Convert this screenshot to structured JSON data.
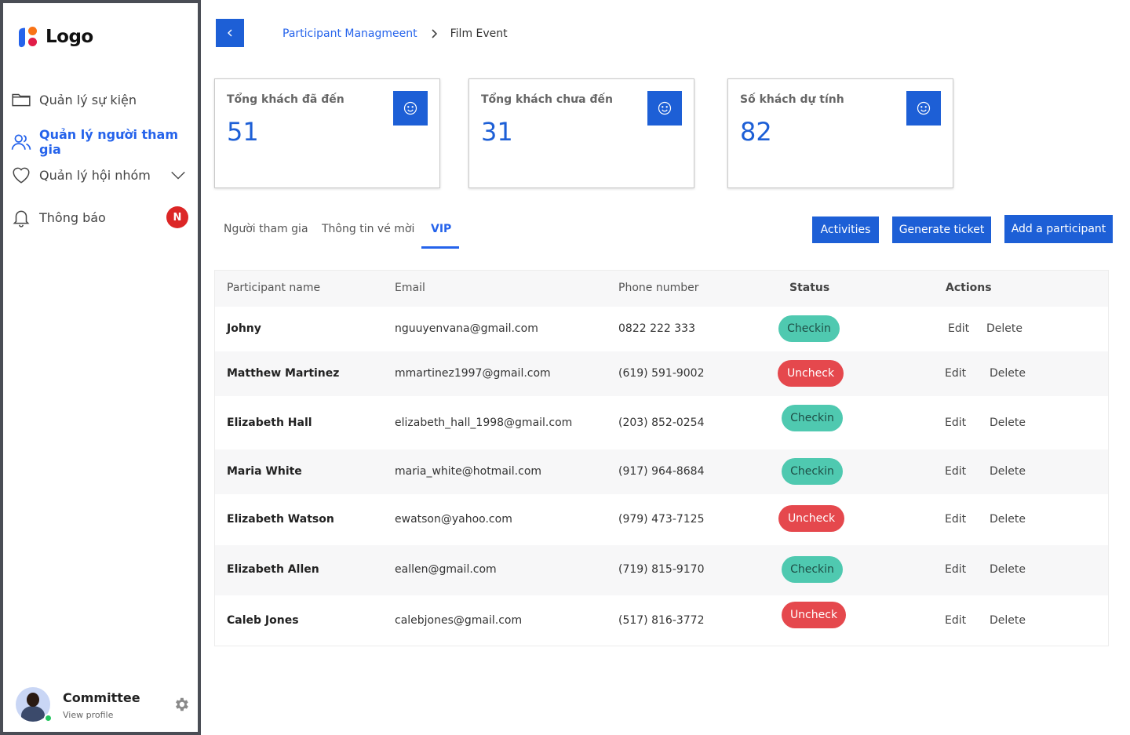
{
  "sidebar": {
    "logo_text": "Logo",
    "items": [
      {
        "label": "Quản lý sự kiện",
        "icon": "folder-icon",
        "active": false
      },
      {
        "label": "Quản lý người tham gia",
        "icon": "users-icon",
        "active": true
      },
      {
        "label": "Quản lý hội nhóm",
        "icon": "heart-icon",
        "active": false,
        "expandable": true
      },
      {
        "label": "Thông báo",
        "icon": "bell-icon",
        "active": false,
        "badge": "N"
      }
    ],
    "profile": {
      "name": "Committee",
      "link": "View profile"
    }
  },
  "header": {
    "breadcrumb_parent": "Participant Managmeent",
    "breadcrumb_current": "Film Event"
  },
  "stats": [
    {
      "label": "Tổng khách đã đến",
      "value": "51"
    },
    {
      "label": "Tổng khách chưa đến",
      "value": "31"
    },
    {
      "label": "Số khách dự tính",
      "value": "82"
    }
  ],
  "tabs": [
    {
      "label": "Người tham gia",
      "active": false
    },
    {
      "label": "Thông tin vé mời",
      "active": false
    },
    {
      "label": "VIP",
      "active": true
    }
  ],
  "actions": {
    "activities": "Activities",
    "generate_ticket": "Generate ticket",
    "add_participant": "Add a participant"
  },
  "table": {
    "headers": [
      "Participant name",
      "Email",
      "Phone number",
      "Status",
      "Actions"
    ],
    "edit_label": "Edit",
    "delete_label": "Delete",
    "rows": [
      {
        "name": "Johny",
        "email": "nguuyenvana@gmail.com",
        "phone": "0822 222 333",
        "status": "Checkin"
      },
      {
        "name": "Matthew Martinez",
        "email": "mmartinez1997@gmail.com",
        "phone": "(619) 591-9002",
        "status": "Uncheck"
      },
      {
        "name": "Elizabeth Hall",
        "email": "elizabeth_hall_1998@gmail.com",
        "phone": "(203) 852-0254",
        "status": "Checkin"
      },
      {
        "name": "Maria White",
        "email": "maria_white@hotmail.com",
        "phone": "(917) 964-8684",
        "status": "Checkin"
      },
      {
        "name": "Elizabeth Watson",
        "email": "ewatson@yahoo.com",
        "phone": "(979) 473-7125",
        "status": "Uncheck"
      },
      {
        "name": "Elizabeth Allen",
        "email": "eallen@gmail.com",
        "phone": "(719) 815-9170",
        "status": "Checkin"
      },
      {
        "name": "Caleb Jones",
        "email": "calebjones@gmail.com",
        "phone": "(517) 816-3772",
        "status": "Uncheck"
      }
    ]
  },
  "colors": {
    "primary": "#1d5fd6",
    "checkin": "#4fc9b0",
    "uncheck": "#e5484d",
    "badge": "#dc2626"
  }
}
